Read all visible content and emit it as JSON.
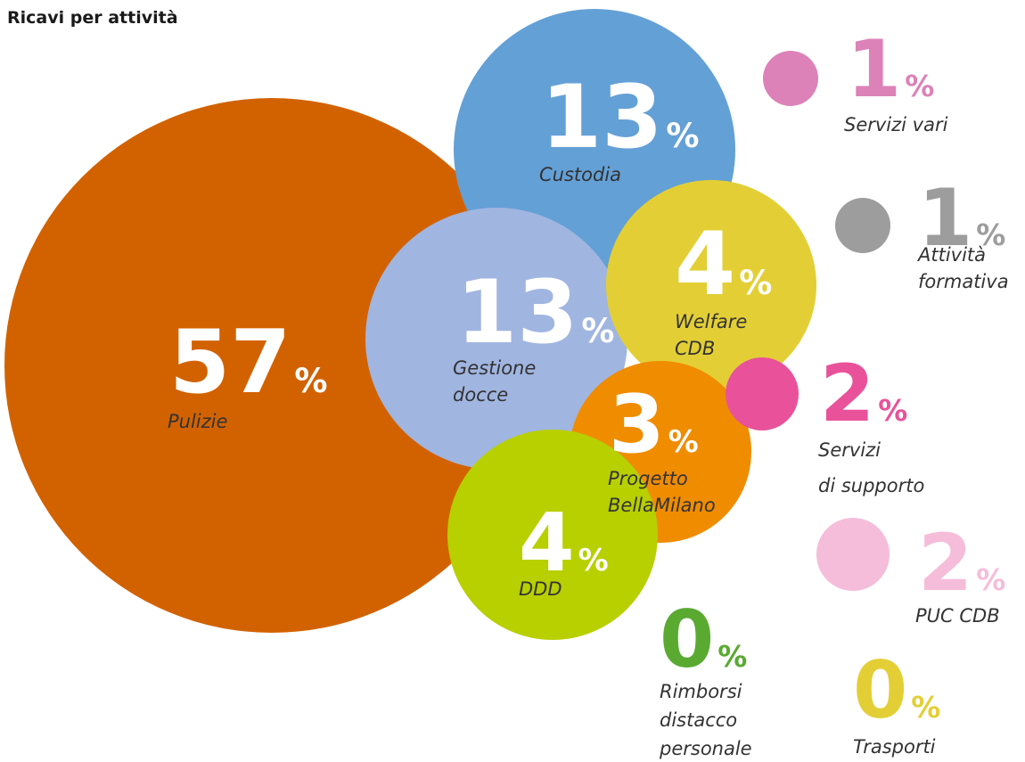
{
  "chart_data": {
    "type": "bubble",
    "title": "Ricavi per attività",
    "unit": "%",
    "categories": [
      [
        "Pulizie"
      ],
      [
        "Custodia"
      ],
      [
        "Gestione",
        "docce"
      ],
      [
        "Welfare",
        "CDB"
      ],
      [
        "Progetto",
        "BellaMilano"
      ],
      [
        "DDD"
      ],
      [
        "Servizi vari"
      ],
      [
        "Attività",
        "formativa"
      ],
      [
        "Servizi",
        "di supporto"
      ],
      [
        "PUC CDB"
      ],
      [
        "Rimborsi",
        "distacco",
        "personale"
      ],
      [
        "Trasporti"
      ]
    ],
    "values": [
      57,
      13,
      13,
      4,
      3,
      4,
      1,
      1,
      2,
      2,
      0,
      0
    ],
    "colors": [
      "#d26200",
      "#63a0d6",
      "#a0b5e0",
      "#e3cf35",
      "#f08c00",
      "#b8cf00",
      "#dc82b8",
      "#9d9d9d",
      "#e9529a",
      "#f5bdd9",
      "#5aaa32",
      "#e3cf35"
    ]
  }
}
